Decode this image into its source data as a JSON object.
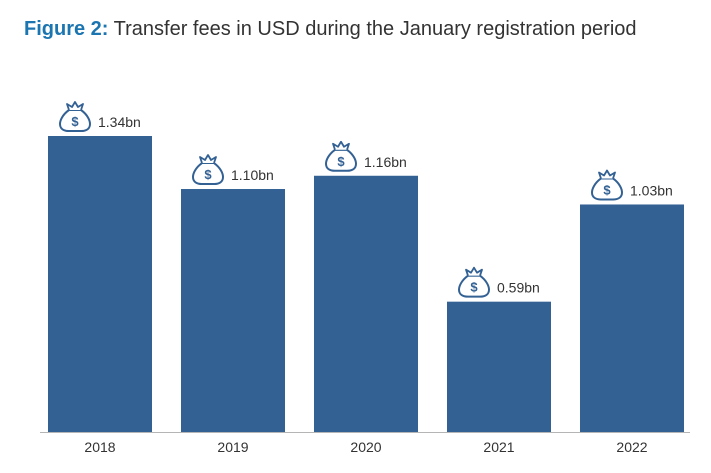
{
  "title": {
    "label": "Figure 2:",
    "text": "Transfer fees in USD during the January registration period"
  },
  "colors": {
    "bar": "#336194",
    "axis": "#b5b5b5",
    "title_label": "#1b75b1",
    "text": "#333333"
  },
  "chart_data": {
    "type": "bar",
    "title": "Figure 2: Transfer fees in USD during the January registration period",
    "categories": [
      "2018",
      "2019",
      "2020",
      "2021",
      "2022"
    ],
    "values": [
      1.34,
      1.1,
      1.16,
      0.59,
      1.03
    ],
    "value_labels": [
      "1.34bn",
      "1.10bn",
      "1.16bn",
      "0.59bn",
      "1.03bn"
    ],
    "unit": "bn USD",
    "xlabel": "",
    "ylabel": "",
    "ylim": [
      0,
      1.34
    ],
    "grid": false,
    "legend": "none",
    "annotations_icon": "money-bag-icon"
  }
}
